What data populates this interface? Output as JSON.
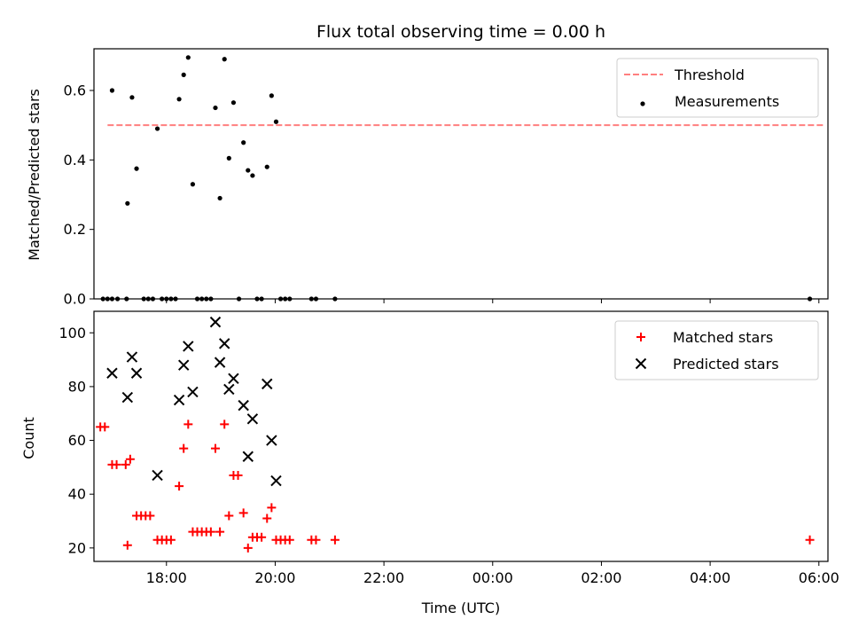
{
  "chart_data": [
    {
      "type": "scatter",
      "title": "Flux total observing time = 0.00 h",
      "xlabel": "",
      "ylabel": "Matched/Predicted stars",
      "ylim": [
        0,
        0.72
      ],
      "xlim": [
        "16:40",
        "06:10"
      ],
      "yticks": [
        0.0,
        0.2,
        0.4,
        0.6
      ],
      "yticks_labels": [
        "0.0",
        "0.2",
        "0.4",
        "0.6"
      ],
      "legend_position": "top-right",
      "grid": false,
      "threshold": {
        "name": "Threshold",
        "value": 0.5,
        "x": [
          "16:55",
          "06:05"
        ],
        "color": "#ff7f7f"
      },
      "series": [
        {
          "name": "Measurements",
          "color": "#000000",
          "points": [
            [
              "17:00",
              0.6
            ],
            [
              "17:22",
              0.58
            ],
            [
              "17:27",
              0.375
            ],
            [
              "17:17",
              0.275
            ],
            [
              "17:50",
              0.49
            ],
            [
              "18:14",
              0.575
            ],
            [
              "18:19",
              0.645
            ],
            [
              "18:24",
              0.695
            ],
            [
              "18:29",
              0.33
            ],
            [
              "18:54",
              0.55
            ],
            [
              "18:59",
              0.29
            ],
            [
              "19:04",
              0.69
            ],
            [
              "19:09",
              0.405
            ],
            [
              "19:14",
              0.565
            ],
            [
              "19:25",
              0.45
            ],
            [
              "19:30",
              0.37
            ],
            [
              "19:35",
              0.355
            ],
            [
              "19:51",
              0.38
            ],
            [
              "19:56",
              0.585
            ],
            [
              "20:01",
              0.51
            ],
            [
              "16:50",
              0.0
            ],
            [
              "16:55",
              0.0
            ],
            [
              "17:00",
              0.0
            ],
            [
              "17:06",
              0.0
            ],
            [
              "17:16",
              0.0
            ],
            [
              "17:35",
              0.0
            ],
            [
              "17:40",
              0.0
            ],
            [
              "17:45",
              0.0
            ],
            [
              "17:55",
              0.0
            ],
            [
              "18:00",
              0.0
            ],
            [
              "18:05",
              0.0
            ],
            [
              "18:10",
              0.0
            ],
            [
              "18:34",
              0.0
            ],
            [
              "18:39",
              0.0
            ],
            [
              "18:44",
              0.0
            ],
            [
              "18:49",
              0.0
            ],
            [
              "19:20",
              0.0
            ],
            [
              "19:40",
              0.0
            ],
            [
              "19:45",
              0.0
            ],
            [
              "20:06",
              0.0
            ],
            [
              "20:11",
              0.0
            ],
            [
              "20:16",
              0.0
            ],
            [
              "20:40",
              0.0
            ],
            [
              "20:45",
              0.0
            ],
            [
              "21:06",
              0.0
            ],
            [
              "05:50",
              0.0
            ]
          ]
        }
      ]
    },
    {
      "type": "scatter",
      "title": "",
      "xlabel": "Time (UTC)",
      "ylabel": "Count",
      "ylim": [
        15,
        108
      ],
      "xlim": [
        "16:40",
        "06:10"
      ],
      "yticks": [
        20,
        40,
        60,
        80,
        100
      ],
      "yticks_labels": [
        "20",
        "40",
        "60",
        "80",
        "100"
      ],
      "xticks": [
        "18:00",
        "20:00",
        "22:00",
        "00:00",
        "02:00",
        "04:00",
        "06:00"
      ],
      "xticks_labels": [
        "18:00",
        "20:00",
        "22:00",
        "00:00",
        "02:00",
        "04:00",
        "06:00"
      ],
      "legend_position": "top-right",
      "grid": false,
      "series": [
        {
          "name": "Matched stars",
          "marker": "plus",
          "color": "#ff0000",
          "points": [
            [
              "16:47",
              65
            ],
            [
              "16:52",
              65
            ],
            [
              "17:00",
              51
            ],
            [
              "17:05",
              51
            ],
            [
              "17:15",
              51
            ],
            [
              "17:20",
              53
            ],
            [
              "17:17",
              21
            ],
            [
              "17:27",
              32
            ],
            [
              "17:32",
              32
            ],
            [
              "17:37",
              32
            ],
            [
              "17:42",
              32
            ],
            [
              "17:50",
              23
            ],
            [
              "17:55",
              23
            ],
            [
              "18:00",
              23
            ],
            [
              "18:05",
              23
            ],
            [
              "18:14",
              43
            ],
            [
              "18:19",
              57
            ],
            [
              "18:24",
              66
            ],
            [
              "18:29",
              26
            ],
            [
              "18:34",
              26
            ],
            [
              "18:39",
              26
            ],
            [
              "18:44",
              26
            ],
            [
              "18:49",
              26
            ],
            [
              "18:54",
              57
            ],
            [
              "18:59",
              26
            ],
            [
              "19:04",
              66
            ],
            [
              "19:09",
              32
            ],
            [
              "19:14",
              47
            ],
            [
              "19:19",
              47
            ],
            [
              "19:25",
              33
            ],
            [
              "19:30",
              20
            ],
            [
              "19:35",
              24
            ],
            [
              "19:40",
              24
            ],
            [
              "19:45",
              24
            ],
            [
              "19:51",
              31
            ],
            [
              "19:56",
              35
            ],
            [
              "20:01",
              23
            ],
            [
              "20:06",
              23
            ],
            [
              "20:11",
              23
            ],
            [
              "20:16",
              23
            ],
            [
              "20:40",
              23
            ],
            [
              "20:45",
              23
            ],
            [
              "21:06",
              23
            ],
            [
              "05:50",
              23
            ]
          ]
        },
        {
          "name": "Predicted stars",
          "marker": "x",
          "color": "#000000",
          "points": [
            [
              "17:00",
              85
            ],
            [
              "17:17",
              76
            ],
            [
              "17:22",
              91
            ],
            [
              "17:27",
              85
            ],
            [
              "17:50",
              47
            ],
            [
              "18:14",
              75
            ],
            [
              "18:19",
              88
            ],
            [
              "18:24",
              95
            ],
            [
              "18:29",
              78
            ],
            [
              "18:54",
              104
            ],
            [
              "18:59",
              89
            ],
            [
              "19:04",
              96
            ],
            [
              "19:09",
              79
            ],
            [
              "19:14",
              83
            ],
            [
              "19:25",
              73
            ],
            [
              "19:30",
              54
            ],
            [
              "19:35",
              68
            ],
            [
              "19:51",
              81
            ],
            [
              "19:56",
              60
            ],
            [
              "20:01",
              45
            ]
          ]
        }
      ]
    }
  ]
}
